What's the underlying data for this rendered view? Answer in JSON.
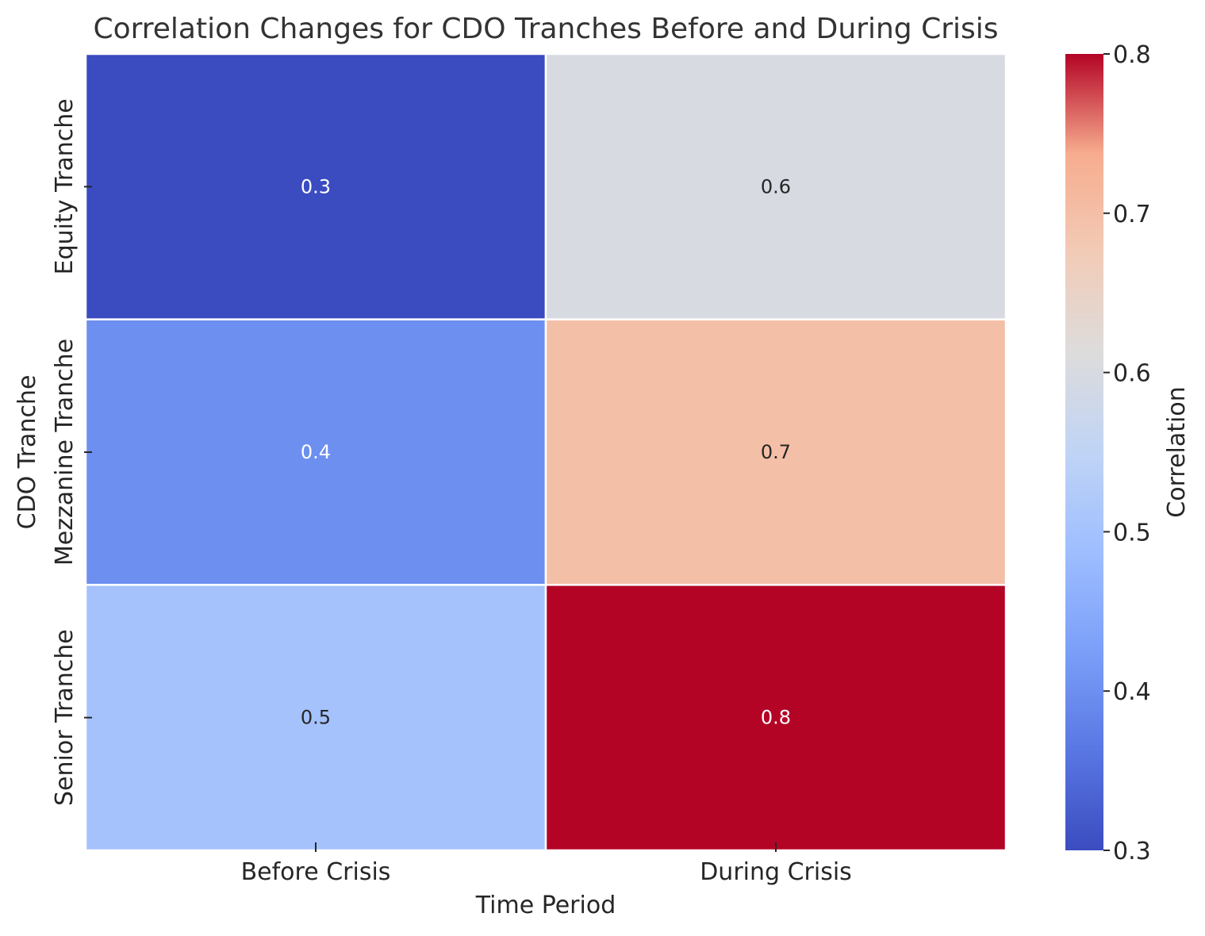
{
  "chart_data": {
    "type": "heatmap",
    "title": "Correlation Changes for CDO Tranches Before and During Crisis",
    "xlabel": "Time Period",
    "ylabel": "CDO Tranche",
    "x_categories": [
      "Before Crisis",
      "During Crisis"
    ],
    "y_categories": [
      "Equity Tranche",
      "Mezzanine Tranche",
      "Senior Tranche"
    ],
    "values": [
      [
        0.3,
        0.6
      ],
      [
        0.4,
        0.7
      ],
      [
        0.5,
        0.8
      ]
    ],
    "cell_labels": [
      [
        "0.3",
        "0.6"
      ],
      [
        "0.4",
        "0.7"
      ],
      [
        "0.5",
        "0.8"
      ]
    ],
    "colorbar": {
      "label": "Correlation",
      "range": [
        0.3,
        0.8
      ],
      "ticks": [
        0.3,
        0.4,
        0.5,
        0.6,
        0.7,
        0.8
      ],
      "tick_labels": [
        "0.3",
        "0.4",
        "0.5",
        "0.6",
        "0.7",
        "0.8"
      ],
      "colormap": "coolwarm"
    },
    "grid": false
  }
}
